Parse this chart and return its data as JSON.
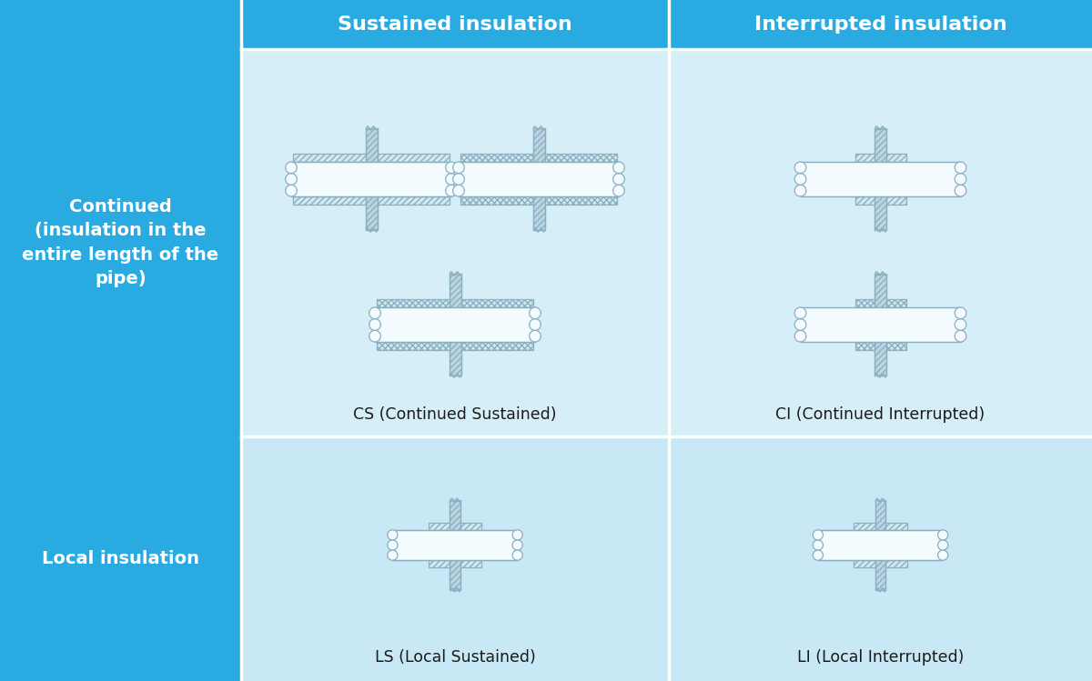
{
  "bg_blue": "#29ABE2",
  "bg_light": "#D6EEF8",
  "bg_row2": "#C8E8F5",
  "line_color": "#8AAFBF",
  "wall_fill": "#BDD5E2",
  "insul_fill": "#D0E9F3",
  "pipe_fill": "#F4FBFE",
  "header1": "Sustained insulation",
  "header2": "Interrupted insulation",
  "row1_label": "Continued\n(insulation in the\nentire length of the\npipe)",
  "row2_label": "Local insulation",
  "cs_label": "CS (Continued Sustained)",
  "ci_label": "CI (Continued Interrupted)",
  "ls_label": "LS (Local Sustained)",
  "li_label": "LI (Local Interrupted)"
}
